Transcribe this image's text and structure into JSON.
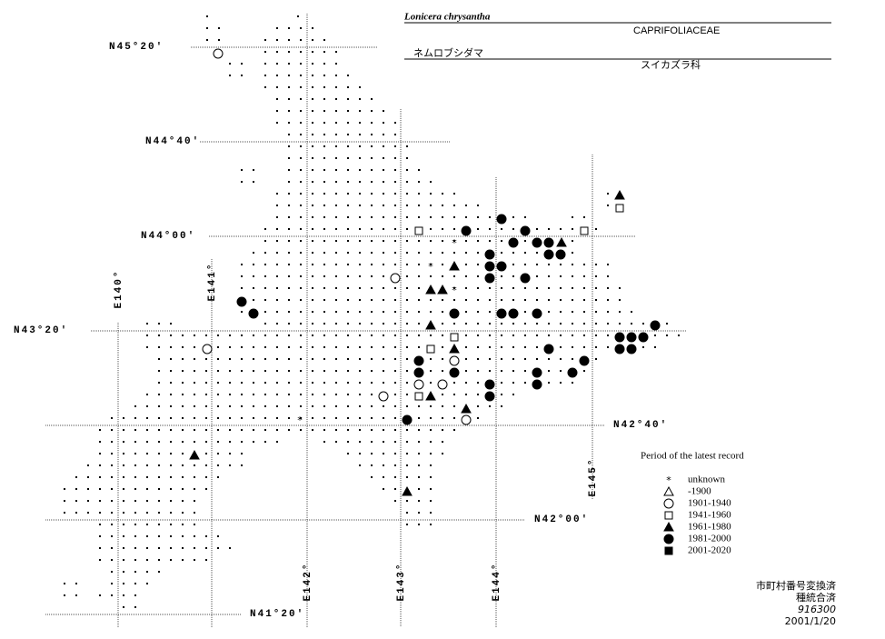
{
  "header": {
    "species": "Lonicera chrysantha",
    "family": "CAPRIFOLIACEAE",
    "japanese_name": "ネムロブシダマ",
    "japanese_family": "スイカズラ科"
  },
  "latitudes": [
    "N45°20′",
    "N44°40′",
    "N44°00′",
    "N43°20′",
    "N42°40′",
    "N42°00′",
    "N41°20′"
  ],
  "longitudes": [
    "E140°",
    "E141°",
    "E142°",
    "E143°",
    "E144°",
    "E145°"
  ],
  "legend": {
    "title": "Period of the latest record",
    "items": [
      "unknown",
      "-1900",
      "1901-1940",
      "1941-1960",
      "1961-1980",
      "1981-2000",
      "2001-2020"
    ]
  },
  "footer": [
    "市町村番号変換済",
    "種統合済",
    "916300",
    "2001/1/20"
  ]
}
